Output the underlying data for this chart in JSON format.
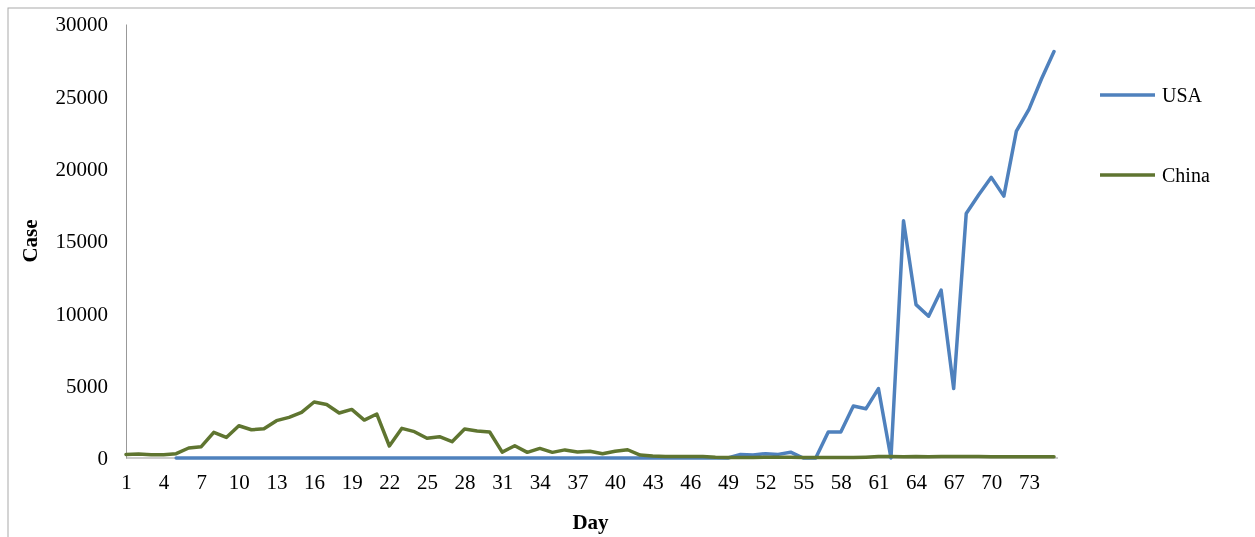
{
  "chart_data": {
    "type": "line",
    "xlabel": "Day",
    "ylabel": "Case",
    "categories": [
      "1",
      null,
      null,
      "4",
      null,
      null,
      "7",
      null,
      null,
      "10",
      null,
      null,
      "13",
      null,
      null,
      "16",
      null,
      null,
      "19",
      null,
      null,
      "22",
      null,
      null,
      "25",
      null,
      null,
      "28",
      null,
      null,
      "31",
      null,
      null,
      "34",
      null,
      null,
      "37",
      null,
      null,
      "40",
      null,
      null,
      "43",
      null,
      null,
      "46",
      null,
      null,
      "49",
      null,
      null,
      "52",
      null,
      null,
      "55",
      null,
      null,
      "58",
      null,
      null,
      "61",
      null,
      null,
      "64",
      null,
      null,
      "67",
      null,
      null,
      "70",
      null,
      null,
      "73",
      null,
      null
    ],
    "series": [
      {
        "name": "USA",
        "color": "#4f81bd",
        "values": [
          null,
          null,
          null,
          null,
          0,
          0,
          0,
          0,
          0,
          0,
          0,
          0,
          0,
          0,
          0,
          0,
          0,
          0,
          0,
          0,
          0,
          0,
          0,
          0,
          0,
          0,
          0,
          0,
          0,
          0,
          0,
          0,
          0,
          0,
          0,
          0,
          0,
          0,
          0,
          0,
          0,
          0,
          0,
          0,
          0,
          0,
          0,
          0,
          0,
          250,
          200,
          300,
          250,
          400,
          0,
          0,
          1800,
          1800,
          3600,
          3400,
          4800,
          0,
          16400,
          10600,
          9800,
          11600,
          4800,
          16900,
          18200,
          19400,
          18100,
          22600,
          24100,
          26200,
          28100
        ]
      },
      {
        "name": "China",
        "color": "#5f7530",
        "values": [
          250,
          280,
          230,
          230,
          300,
          690,
          780,
          1770,
          1420,
          2230,
          1950,
          2020,
          2580,
          2810,
          3150,
          3870,
          3700,
          3110,
          3360,
          2620,
          3040,
          830,
          2050,
          1820,
          1360,
          1470,
          1130,
          2000,
          1870,
          1800,
          410,
          850,
          390,
          660,
          390,
          560,
          420,
          460,
          300,
          460,
          570,
          200,
          130,
          100,
          100,
          100,
          100,
          50,
          30,
          30,
          30,
          50,
          60,
          50,
          30,
          30,
          30,
          30,
          30,
          60,
          100,
          100,
          80,
          100,
          80,
          100,
          100,
          100,
          100,
          80,
          80,
          80,
          80,
          80,
          80
        ]
      }
    ],
    "ylim": [
      0,
      30000
    ],
    "yticks": [
      0,
      5000,
      10000,
      15000,
      20000,
      25000,
      30000
    ],
    "grid": false,
    "legend": "right",
    "marker": "none",
    "line_style": "solid"
  }
}
